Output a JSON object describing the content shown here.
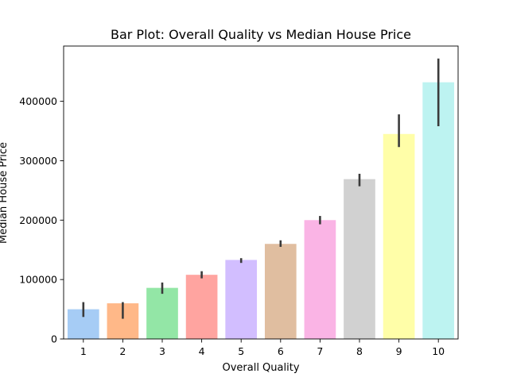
{
  "chart_data": {
    "type": "bar",
    "title": "Bar Plot: Overall Quality vs Median House Price",
    "xlabel": "Overall Quality",
    "ylabel": "Median House Price",
    "categories": [
      "1",
      "2",
      "3",
      "4",
      "5",
      "6",
      "7",
      "8",
      "9",
      "10"
    ],
    "values": [
      50000,
      60000,
      86000,
      108000,
      133000,
      160000,
      200000,
      269000,
      345000,
      432000
    ],
    "error_low": [
      37000,
      34000,
      76000,
      102000,
      128000,
      155000,
      193000,
      257000,
      323000,
      358000
    ],
    "error_high": [
      62000,
      62000,
      95000,
      114000,
      136000,
      166000,
      207000,
      278000,
      378000,
      472000
    ],
    "ylim": [
      0,
      493000
    ],
    "yticks": [
      0,
      100000,
      200000,
      300000,
      400000
    ],
    "grid": false,
    "colors": [
      "#a1c9f4",
      "#ffb482",
      "#8de5a1",
      "#ff9f9b",
      "#d0bbff",
      "#debb9b",
      "#fab0e4",
      "#cfcfcf",
      "#fffea3",
      "#b9f2f0"
    ],
    "error_color": "#3b3b3b",
    "bar_opacity": 0.95
  }
}
